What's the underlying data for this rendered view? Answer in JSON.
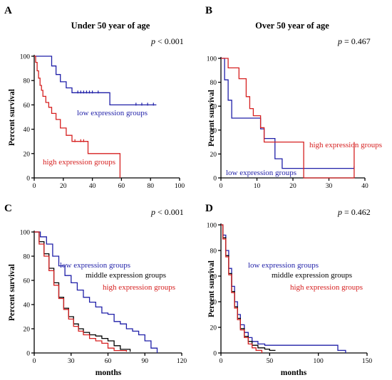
{
  "chart_data": [
    {
      "panel": "A",
      "type": "line",
      "title": "Under 50 year of age",
      "p_prefix": "p",
      "p_value": " < 0.001",
      "xlabel": "",
      "ylabel": "Percent survival",
      "xlim": [
        0,
        100
      ],
      "ylim": [
        0,
        100
      ],
      "xticks": [
        0,
        20,
        40,
        60,
        80,
        100
      ],
      "yticks": [
        0,
        20,
        40,
        60,
        80,
        100
      ],
      "series": [
        {
          "name": "low expression groups",
          "color": "#1f1fa8",
          "x": [
            0,
            10,
            12,
            15,
            18,
            22,
            26,
            52,
            84
          ],
          "y": [
            100,
            100,
            92,
            85,
            79,
            74,
            70,
            60,
            60
          ],
          "censor_x": [
            30,
            32,
            34,
            36,
            38,
            40,
            44,
            70,
            74,
            78,
            82
          ],
          "censor_y": [
            70,
            70,
            70,
            70,
            70,
            70,
            70,
            60,
            60,
            60,
            60
          ]
        },
        {
          "name": "high expression groups",
          "color": "#d62020",
          "x": [
            0,
            1,
            2,
            3,
            4,
            5,
            6,
            8,
            10,
            12,
            15,
            18,
            22,
            26,
            37,
            59
          ],
          "y": [
            100,
            95,
            88,
            82,
            76,
            72,
            67,
            62,
            58,
            53,
            48,
            41,
            35,
            30,
            20,
            0
          ],
          "censor_x": [
            28,
            32,
            34
          ],
          "censor_y": [
            30,
            30,
            30
          ]
        }
      ]
    },
    {
      "panel": "B",
      "type": "line",
      "title": "Over 50 year of age",
      "p_prefix": "p",
      "p_value": " = 0.467",
      "xlabel": "",
      "ylabel": "Percent survival",
      "xlim": [
        0,
        40
      ],
      "ylim": [
        0,
        100
      ],
      "xticks": [
        0,
        10,
        20,
        30,
        40
      ],
      "yticks": [
        0,
        20,
        40,
        60,
        80,
        100
      ],
      "series": [
        {
          "name": "low expression groups",
          "color": "#1f1fa8",
          "x": [
            0,
            1,
            2,
            3,
            8,
            11,
            12,
            15,
            17,
            37
          ],
          "y": [
            100,
            82,
            65,
            50,
            50,
            41,
            33,
            16,
            8,
            8
          ],
          "censor_x": [
            37
          ],
          "censor_y": [
            8
          ]
        },
        {
          "name": "high expression groups",
          "color": "#d62020",
          "x": [
            0,
            2,
            3,
            5,
            7,
            8,
            9,
            11,
            12,
            23,
            37
          ],
          "y": [
            100,
            92,
            92,
            83,
            68,
            58,
            52,
            42,
            30,
            0,
            30
          ],
          "censor_x": [],
          "censor_y": []
        }
      ]
    },
    {
      "panel": "C",
      "type": "line",
      "title": "",
      "p_prefix": "p",
      "p_value": " < 0.001",
      "xlabel": "months",
      "ylabel": "Percent survival",
      "xlim": [
        0,
        120
      ],
      "ylim": [
        0,
        100
      ],
      "xticks": [
        0,
        30,
        60,
        90,
        120
      ],
      "yticks": [
        0,
        20,
        40,
        60,
        80,
        100
      ],
      "series": [
        {
          "name": "low expression groups",
          "color": "#1f1fa8",
          "x": [
            0,
            5,
            10,
            15,
            20,
            25,
            30,
            35,
            40,
            45,
            50,
            55,
            60,
            65,
            70,
            75,
            80,
            85,
            90,
            95,
            100
          ],
          "y": [
            100,
            96,
            90,
            80,
            72,
            64,
            58,
            52,
            46,
            42,
            38,
            33,
            32,
            26,
            24,
            20,
            18,
            15,
            10,
            4,
            0
          ],
          "censor_x": [],
          "censor_y": []
        },
        {
          "name": "middle expression groups",
          "color": "#000000",
          "x": [
            0,
            4,
            8,
            12,
            16,
            20,
            24,
            28,
            32,
            36,
            40,
            45,
            50,
            55,
            60,
            65,
            70,
            78
          ],
          "y": [
            100,
            92,
            82,
            70,
            58,
            46,
            37,
            30,
            24,
            20,
            17,
            15,
            14,
            12,
            10,
            6,
            3,
            1
          ],
          "censor_x": [],
          "censor_y": []
        },
        {
          "name": "high expression groups",
          "color": "#d62020",
          "x": [
            0,
            4,
            8,
            12,
            16,
            20,
            24,
            28,
            32,
            36,
            40,
            45,
            50,
            55,
            60,
            65,
            75
          ],
          "y": [
            100,
            90,
            80,
            68,
            56,
            45,
            36,
            28,
            22,
            18,
            15,
            12,
            10,
            8,
            4,
            2,
            1
          ],
          "censor_x": [],
          "censor_y": []
        }
      ]
    },
    {
      "panel": "D",
      "type": "line",
      "title": "",
      "p_prefix": "p",
      "p_value": " = 0.462",
      "xlabel": "months",
      "ylabel": "Percent survival",
      "xlim": [
        0,
        150
      ],
      "ylim": [
        0,
        100
      ],
      "xticks": [
        0,
        50,
        100,
        150
      ],
      "yticks": [
        0,
        20,
        40,
        60,
        80,
        100
      ],
      "series": [
        {
          "name": "low expression groups",
          "color": "#1f1fa8",
          "x": [
            0,
            2,
            5,
            8,
            11,
            14,
            17,
            20,
            24,
            28,
            32,
            38,
            45,
            60,
            80,
            100,
            120,
            128
          ],
          "y": [
            100,
            92,
            80,
            66,
            52,
            40,
            30,
            22,
            16,
            12,
            9,
            7,
            6,
            6,
            6,
            6,
            2,
            0
          ],
          "censor_x": [],
          "censor_y": []
        },
        {
          "name": "middle expression groups",
          "color": "#000000",
          "x": [
            0,
            2,
            5,
            8,
            11,
            14,
            17,
            20,
            24,
            28,
            32,
            38,
            45,
            50,
            56
          ],
          "y": [
            100,
            90,
            76,
            62,
            48,
            36,
            27,
            19,
            13,
            9,
            6,
            4,
            3,
            2,
            2
          ],
          "censor_x": [],
          "censor_y": []
        },
        {
          "name": "high expression groups",
          "color": "#d62020",
          "x": [
            0,
            2,
            5,
            8,
            11,
            14,
            17,
            20,
            24,
            28,
            32,
            36,
            42
          ],
          "y": [
            100,
            89,
            75,
            61,
            47,
            35,
            26,
            18,
            12,
            7,
            4,
            2,
            0
          ],
          "censor_x": [],
          "censor_y": []
        }
      ]
    }
  ]
}
